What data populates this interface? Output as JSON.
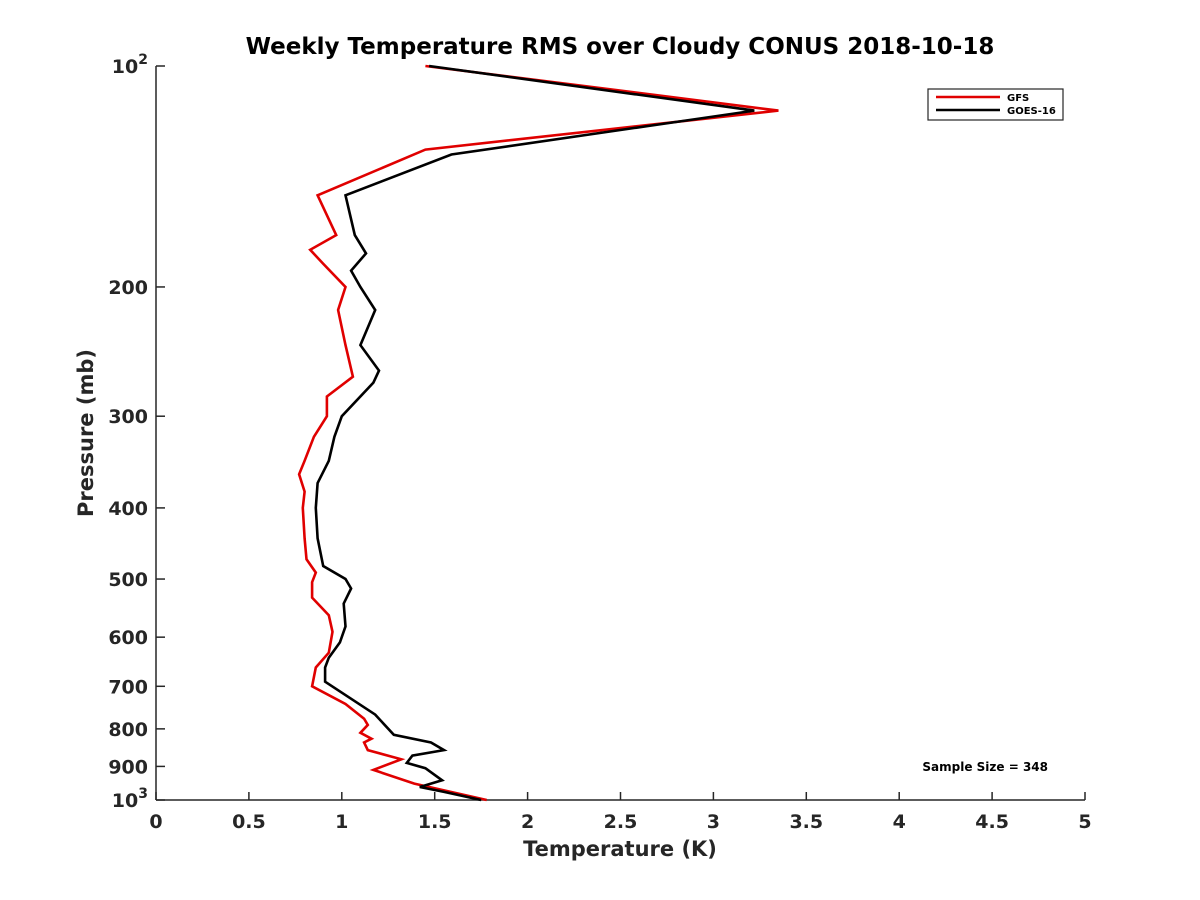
{
  "chart_data": {
    "type": "line",
    "title": "Weekly Temperature RMS over Cloudy CONUS 2018-10-18",
    "xlabel": "Temperature (K)",
    "ylabel": "Pressure (mb)",
    "xlim": [
      0,
      5
    ],
    "ylim": [
      100,
      1000
    ],
    "y_scale": "log",
    "y_reversed": true,
    "grid": false,
    "legend_position": "top-right",
    "x_ticks": [
      0,
      0.5,
      1,
      1.5,
      2,
      2.5,
      3,
      3.5,
      4,
      4.5,
      5
    ],
    "x_tick_labels": [
      "0",
      "0.5",
      "1",
      "1.5",
      "2",
      "2.5",
      "3",
      "3.5",
      "4",
      "4.5",
      "5"
    ],
    "y_ticks": [
      100,
      200,
      300,
      400,
      500,
      600,
      700,
      800,
      900,
      1000
    ],
    "y_tick_labels": [
      {
        "base": "10",
        "exp": "2"
      },
      {
        "base": "200",
        "exp": ""
      },
      {
        "base": "300",
        "exp": ""
      },
      {
        "base": "400",
        "exp": ""
      },
      {
        "base": "500",
        "exp": ""
      },
      {
        "base": "600",
        "exp": ""
      },
      {
        "base": "700",
        "exp": ""
      },
      {
        "base": "800",
        "exp": ""
      },
      {
        "base": "900",
        "exp": ""
      },
      {
        "base": "10",
        "exp": "3"
      }
    ],
    "series": [
      {
        "name": "GFS",
        "color": "#e00000",
        "points": [
          [
            1.45,
            100
          ],
          [
            3.35,
            115
          ],
          [
            1.45,
            130
          ],
          [
            0.87,
            150
          ],
          [
            0.97,
            170
          ],
          [
            0.83,
            178
          ],
          [
            0.9,
            186
          ],
          [
            1.02,
            200
          ],
          [
            0.98,
            215
          ],
          [
            1.02,
            240
          ],
          [
            1.06,
            265
          ],
          [
            0.92,
            282
          ],
          [
            0.92,
            300
          ],
          [
            0.85,
            320
          ],
          [
            0.8,
            345
          ],
          [
            0.77,
            360
          ],
          [
            0.8,
            380
          ],
          [
            0.79,
            400
          ],
          [
            0.8,
            440
          ],
          [
            0.81,
            470
          ],
          [
            0.86,
            490
          ],
          [
            0.84,
            505
          ],
          [
            0.84,
            530
          ],
          [
            0.93,
            560
          ],
          [
            0.95,
            590
          ],
          [
            0.93,
            630
          ],
          [
            0.86,
            660
          ],
          [
            0.84,
            700
          ],
          [
            1.02,
            740
          ],
          [
            1.12,
            775
          ],
          [
            1.14,
            790
          ],
          [
            1.1,
            810
          ],
          [
            1.16,
            825
          ],
          [
            1.12,
            835
          ],
          [
            1.14,
            855
          ],
          [
            1.32,
            880
          ],
          [
            1.17,
            910
          ],
          [
            1.39,
            950
          ],
          [
            1.78,
            1000
          ]
        ]
      },
      {
        "name": "GOES-16",
        "color": "#000000",
        "points": [
          [
            1.47,
            100
          ],
          [
            3.22,
            115
          ],
          [
            1.59,
            132
          ],
          [
            1.02,
            150
          ],
          [
            1.07,
            170
          ],
          [
            1.13,
            180
          ],
          [
            1.05,
            190
          ],
          [
            1.1,
            200
          ],
          [
            1.18,
            215
          ],
          [
            1.1,
            240
          ],
          [
            1.2,
            260
          ],
          [
            1.17,
            270
          ],
          [
            1.0,
            300
          ],
          [
            0.96,
            320
          ],
          [
            0.93,
            345
          ],
          [
            0.87,
            370
          ],
          [
            0.86,
            400
          ],
          [
            0.87,
            440
          ],
          [
            0.9,
            480
          ],
          [
            1.02,
            500
          ],
          [
            1.05,
            515
          ],
          [
            1.01,
            540
          ],
          [
            1.02,
            580
          ],
          [
            0.99,
            610
          ],
          [
            0.93,
            640
          ],
          [
            0.91,
            660
          ],
          [
            0.91,
            690
          ],
          [
            1.18,
            765
          ],
          [
            1.28,
            815
          ],
          [
            1.48,
            835
          ],
          [
            1.55,
            855
          ],
          [
            1.38,
            870
          ],
          [
            1.35,
            890
          ],
          [
            1.45,
            905
          ],
          [
            1.54,
            940
          ],
          [
            1.42,
            960
          ],
          [
            1.55,
            975
          ],
          [
            1.75,
            1000
          ]
        ]
      }
    ],
    "annotations": [
      "Sample Size = 348"
    ]
  }
}
